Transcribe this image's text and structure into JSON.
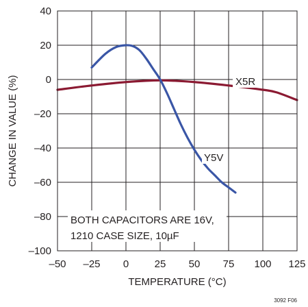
{
  "chart_data": {
    "type": "line",
    "xlabel": "TEMPERATURE (°C)",
    "ylabel": "CHANGE IN VALUE (%)",
    "xlim": [
      -50,
      125
    ],
    "ylim": [
      -100,
      40
    ],
    "x_ticks": [
      -50,
      -25,
      0,
      25,
      50,
      75,
      100,
      125
    ],
    "y_ticks": [
      40,
      20,
      0,
      -20,
      -40,
      -60,
      -80,
      -100
    ],
    "x_tick_labels": [
      "–50",
      "–25",
      "0",
      "25",
      "50",
      "75",
      "100",
      "125"
    ],
    "y_tick_labels": [
      "40",
      "20",
      "0",
      "–20",
      "–40",
      "–60",
      "–80",
      "–100"
    ],
    "grid": true,
    "series": [
      {
        "name": "X5R",
        "color": "#8b1a32",
        "x": [
          -50,
          -25,
          0,
          25,
          50,
          75,
          100,
          110,
          125
        ],
        "y": [
          -6,
          -3.5,
          -1.5,
          -0.5,
          -1.5,
          -3.5,
          -6,
          -7.5,
          -12
        ]
      },
      {
        "name": "Y5V",
        "color": "#3a56a6",
        "x": [
          -25,
          -15,
          -7,
          0,
          5,
          10,
          15,
          20,
          25,
          30,
          35,
          40,
          45,
          50,
          55,
          60,
          65,
          70,
          75,
          80
        ],
        "y": [
          7,
          15,
          19,
          20,
          19.5,
          17,
          12,
          6,
          0,
          -8,
          -17,
          -26,
          -34,
          -41,
          -47,
          -52,
          -56,
          -60,
          -63,
          -66
        ]
      }
    ],
    "annotation_lines": [
      "BOTH CAPACITORS ARE 16V,",
      "1210 CASE SIZE, 10µF"
    ],
    "figure_code": "3092 F06"
  }
}
